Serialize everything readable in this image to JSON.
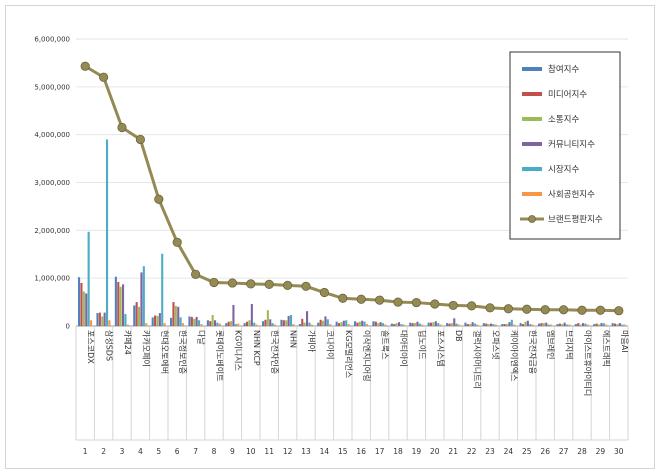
{
  "chart_data": {
    "type": "bar",
    "title": "",
    "xlabel": "",
    "ylabel": "",
    "ylim": [
      0,
      6000000
    ],
    "yticks": [
      "0",
      "1,000,000",
      "2,000,000",
      "3,000,000",
      "4,000,000",
      "5,000,000",
      "6,000,000"
    ],
    "grid": true,
    "legend_position": "right",
    "numbers": [
      "1",
      "2",
      "3",
      "4",
      "5",
      "6",
      "7",
      "8",
      "9",
      "10",
      "11",
      "12",
      "13",
      "14",
      "15",
      "16",
      "17",
      "18",
      "19",
      "20",
      "21",
      "22",
      "23",
      "24",
      "25",
      "26",
      "27",
      "28",
      "29",
      "30"
    ],
    "categories": [
      "포스코DX",
      "삼성SDS",
      "카페24",
      "카카오페이",
      "현대오토에버",
      "한국정보인증",
      "다날",
      "롯데이노베이트",
      "KG이니시스",
      "NHN KCP",
      "한국전자인증",
      "NHN",
      "가비아",
      "코나아이",
      "KG모빌리언스",
      "이삭엔지니어링",
      "솔트룩스",
      "대아티아이",
      "딥노이드",
      "포스시스템",
      "DB",
      "갤럭시아머니트리",
      "오파스넷",
      "케이아이엔엑스",
      "한국전자금융",
      "엠브레인",
      "브리지텍",
      "아이스트휴아이티디",
      "에스트래픽",
      "마음AI"
    ],
    "series": [
      {
        "name": "참여지수",
        "color": "#4f81bd",
        "kind": "bar",
        "values": [
          1020000,
          270000,
          1030000,
          430000,
          180000,
          170000,
          200000,
          120000,
          60000,
          60000,
          100000,
          130000,
          40000,
          70000,
          90000,
          100000,
          100000,
          50000,
          70000,
          70000,
          60000,
          70000,
          60000,
          40000,
          60000,
          50000,
          40000,
          40000,
          40000,
          60000
        ]
      },
      {
        "name": "미디어지수",
        "color": "#c0504d",
        "kind": "bar",
        "values": [
          900000,
          280000,
          920000,
          500000,
          220000,
          500000,
          190000,
          100000,
          90000,
          90000,
          130000,
          120000,
          150000,
          130000,
          60000,
          70000,
          90000,
          40000,
          60000,
          70000,
          50000,
          40000,
          50000,
          40000,
          40000,
          60000,
          50000,
          60000,
          50000,
          50000
        ]
      },
      {
        "name": "소통지수",
        "color": "#9bbb59",
        "kind": "bar",
        "values": [
          720000,
          200000,
          820000,
          400000,
          210000,
          420000,
          150000,
          230000,
          100000,
          120000,
          330000,
          120000,
          70000,
          110000,
          80000,
          90000,
          60000,
          60000,
          60000,
          80000,
          60000,
          40000,
          40000,
          40000,
          90000,
          60000,
          40000,
          30000,
          30000,
          40000
        ]
      },
      {
        "name": "커뮤니티지수",
        "color": "#8064a2",
        "kind": "bar",
        "values": [
          680000,
          280000,
          870000,
          1120000,
          270000,
          400000,
          190000,
          120000,
          440000,
          460000,
          140000,
          210000,
          310000,
          200000,
          110000,
          110000,
          80000,
          80000,
          90000,
          100000,
          160000,
          80000,
          50000,
          80000,
          110000,
          70000,
          70000,
          60000,
          60000,
          60000
        ]
      },
      {
        "name": "시장지수",
        "color": "#4bacc6",
        "kind": "bar",
        "values": [
          1970000,
          3900000,
          250000,
          1250000,
          1510000,
          180000,
          120000,
          70000,
          40000,
          70000,
          60000,
          230000,
          70000,
          140000,
          120000,
          90000,
          60000,
          40000,
          50000,
          60000,
          50000,
          50000,
          40000,
          130000,
          40000,
          30000,
          30000,
          50000,
          60000,
          30000
        ]
      },
      {
        "name": "사회공헌지수",
        "color": "#f79646",
        "kind": "bar",
        "values": [
          120000,
          120000,
          30000,
          60000,
          60000,
          60000,
          40000,
          50000,
          50000,
          30000,
          30000,
          40000,
          30000,
          40000,
          40000,
          40000,
          30000,
          30000,
          30000,
          30000,
          30000,
          30000,
          30000,
          30000,
          30000,
          30000,
          30000,
          30000,
          30000,
          30000
        ]
      },
      {
        "name": "브랜드평판지수",
        "color": "#948a54",
        "kind": "line",
        "values": [
          5430000,
          5200000,
          4150000,
          3900000,
          2650000,
          1750000,
          1080000,
          910000,
          900000,
          880000,
          870000,
          850000,
          830000,
          700000,
          580000,
          560000,
          540000,
          500000,
          490000,
          460000,
          430000,
          420000,
          380000,
          360000,
          350000,
          340000,
          340000,
          330000,
          330000,
          320000
        ]
      }
    ]
  }
}
